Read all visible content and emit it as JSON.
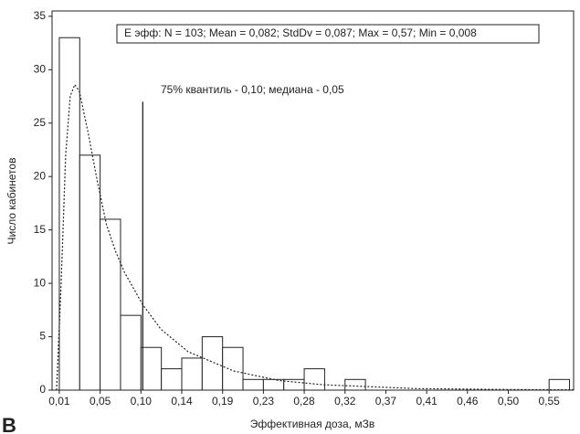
{
  "chart_data": {
    "type": "histogram",
    "legend_text": "E эфф:   N = 103; Mean = 0,082; StdDv = 0,087; Max = 0,57; Min = 0,008",
    "annotation": "75% квантиль - 0,10; медиана - 0,05",
    "x_label": "Эффективная доза, мЗв",
    "y_label": "Число кабинетов",
    "panel_label": "B",
    "bins": [
      0.008,
      0.0305,
      0.053,
      0.0755,
      0.098,
      0.1205,
      0.143,
      0.1655,
      0.188,
      0.2105,
      0.233,
      0.2555,
      0.278,
      0.3005,
      0.323,
      0.3455,
      0.368,
      0.3905,
      0.413,
      0.4355,
      0.458,
      0.4805,
      0.503,
      0.5255,
      0.548,
      0.5705
    ],
    "counts": [
      33,
      22,
      16,
      7,
      4,
      2,
      3,
      5,
      4,
      1,
      1,
      1,
      2,
      0,
      1,
      0,
      0,
      0,
      0,
      0,
      0,
      0,
      0,
      0,
      1
    ],
    "color": "#ffffff",
    "quantile_line": {
      "x": 0.1,
      "top": 27
    },
    "fit_curve": {
      "x": [
        0.005,
        0.01,
        0.015,
        0.02,
        0.025,
        0.03,
        0.04,
        0.05,
        0.06,
        0.07,
        0.08,
        0.1,
        0.12,
        0.15,
        0.2,
        0.25,
        0.3,
        0.4,
        0.5,
        0.575
      ],
      "y": [
        0,
        10,
        22,
        27.5,
        28.6,
        28,
        24,
        19.5,
        15.5,
        13,
        11,
        8,
        5.7,
        3.6,
        1.8,
        0.9,
        0.5,
        0.15,
        0.06,
        0.03
      ]
    },
    "xlim": [
      0,
      0.575
    ],
    "xticks": [
      {
        "value": 0.008,
        "label": "0,01"
      },
      {
        "value": 0.053,
        "label": "0,05"
      },
      {
        "value": 0.098,
        "label": "0,10"
      },
      {
        "value": 0.143,
        "label": "0,14"
      },
      {
        "value": 0.188,
        "label": "0,19"
      },
      {
        "value": 0.233,
        "label": "0,23"
      },
      {
        "value": 0.278,
        "label": "0,28"
      },
      {
        "value": 0.323,
        "label": "0,32"
      },
      {
        "value": 0.368,
        "label": "0,37"
      },
      {
        "value": 0.413,
        "label": "0,41"
      },
      {
        "value": 0.458,
        "label": "0,46"
      },
      {
        "value": 0.503,
        "label": "0,50"
      },
      {
        "value": 0.548,
        "label": "0,55"
      }
    ],
    "ylim": [
      0,
      35.5
    ],
    "yticks": [
      0,
      5,
      10,
      15,
      20,
      25,
      30,
      35
    ]
  }
}
